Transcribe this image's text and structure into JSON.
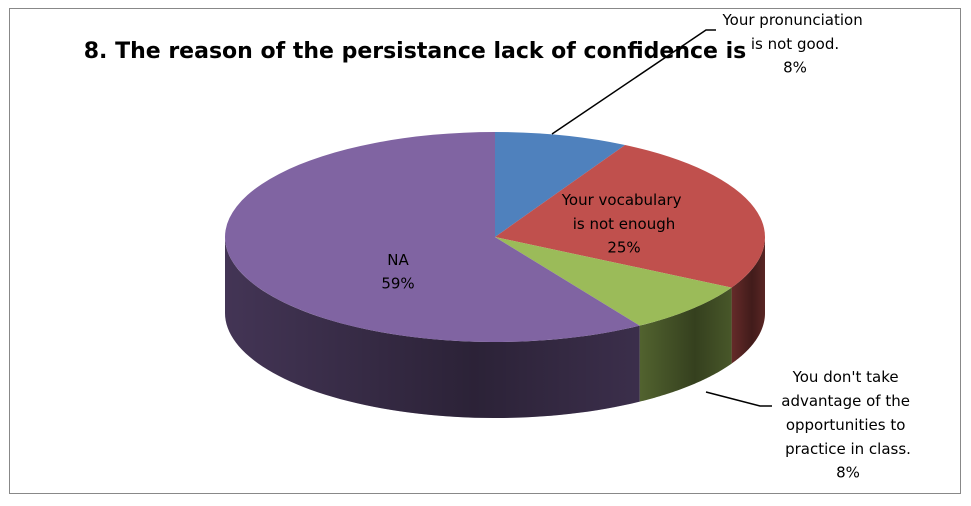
{
  "chart_data": {
    "type": "pie3d",
    "title": "8. The reason of the persistance lack of confidence is",
    "categories": [
      "Your pronunciation is not good.",
      "Your vocabulary is not enough",
      "You don't take advantage of the opportunities to practice in class.",
      "NA"
    ],
    "values": [
      8,
      25,
      8,
      59
    ],
    "value_labels": [
      "8%",
      "25%",
      "8%",
      "59%"
    ],
    "colors": [
      "#4f81bd",
      "#c0504d",
      "#9bbb59",
      "#8064a2"
    ]
  }
}
